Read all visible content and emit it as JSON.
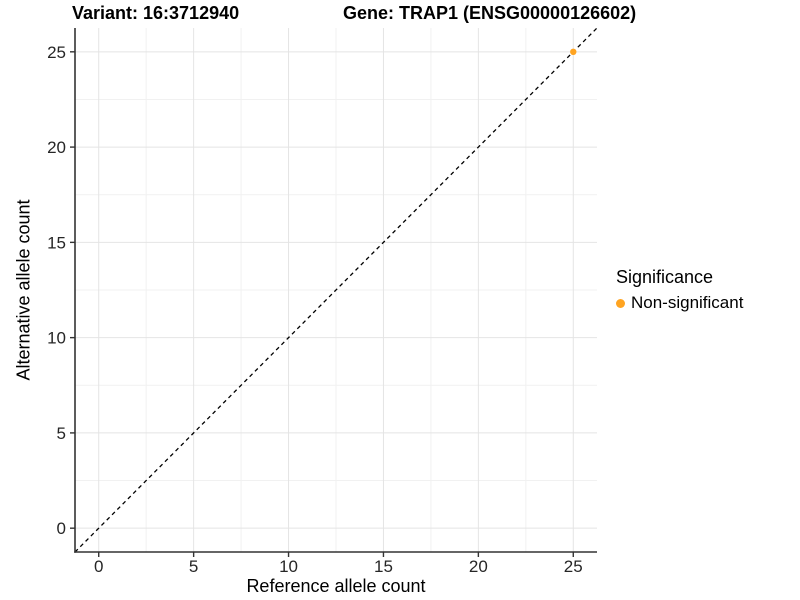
{
  "chart_data": {
    "type": "scatter",
    "titles": {
      "left": "Variant: 16:3712940",
      "right": "Gene: TRAP1 (ENSG00000126602)"
    },
    "xlabel": "Reference allele count",
    "ylabel": "Alternative allele count",
    "xlim": [
      -1.25,
      26.25
    ],
    "ylim": [
      -1.25,
      26.25
    ],
    "x_ticks": [
      0,
      5,
      10,
      15,
      20,
      25
    ],
    "y_ticks": [
      0,
      5,
      10,
      15,
      20,
      25
    ],
    "x_minor_ticks": [
      2.5,
      7.5,
      12.5,
      17.5,
      22.5
    ],
    "y_minor_ticks": [
      2.5,
      7.5,
      12.5,
      17.5,
      22.5
    ],
    "grid": "major+minor",
    "identity_line": {
      "equation": "y = x",
      "style": "dashed",
      "color": "#000000",
      "x1": -1.25,
      "y1": -1.25,
      "x2": 26.25,
      "y2": 26.25
    },
    "series": [
      {
        "name": "Non-significant",
        "color": "#FFA421",
        "points": [
          {
            "x": 25,
            "y": 25
          }
        ]
      }
    ],
    "legend": {
      "title": "Significance",
      "position": "right",
      "entries": [
        {
          "label": "Non-significant",
          "color": "#FFA421"
        }
      ]
    },
    "colors": {
      "grid_major": "#E4E4E4",
      "grid_minor": "#F1F1F1",
      "axis": "#333333",
      "tick_text": "#262626"
    }
  }
}
